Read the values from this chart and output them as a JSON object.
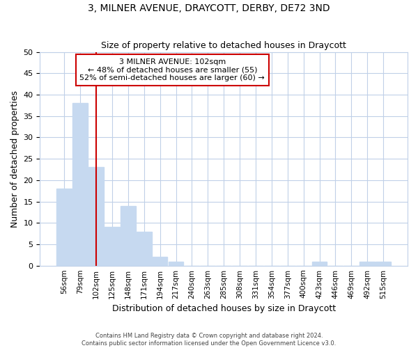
{
  "title": "3, MILNER AVENUE, DRAYCOTT, DERBY, DE72 3ND",
  "subtitle": "Size of property relative to detached houses in Draycott",
  "xlabel": "Distribution of detached houses by size in Draycott",
  "ylabel": "Number of detached properties",
  "bar_labels": [
    "56sqm",
    "79sqm",
    "102sqm",
    "125sqm",
    "148sqm",
    "171sqm",
    "194sqm",
    "217sqm",
    "240sqm",
    "263sqm",
    "285sqm",
    "308sqm",
    "331sqm",
    "354sqm",
    "377sqm",
    "400sqm",
    "423sqm",
    "446sqm",
    "469sqm",
    "492sqm",
    "515sqm"
  ],
  "bar_values": [
    18,
    38,
    23,
    9,
    14,
    8,
    2,
    1,
    0,
    0,
    0,
    0,
    0,
    0,
    0,
    0,
    1,
    0,
    0,
    1,
    1
  ],
  "bar_color": "#c6d9f0",
  "highlight_index": 2,
  "highlight_color": "#cc0000",
  "ylim": [
    0,
    50
  ],
  "yticks": [
    0,
    5,
    10,
    15,
    20,
    25,
    30,
    35,
    40,
    45,
    50
  ],
  "annotation_title": "3 MILNER AVENUE: 102sqm",
  "annotation_line1": "← 48% of detached houses are smaller (55)",
  "annotation_line2": "52% of semi-detached houses are larger (60) →",
  "footer1": "Contains HM Land Registry data © Crown copyright and database right 2024.",
  "footer2": "Contains public sector information licensed under the Open Government Licence v3.0.",
  "background_color": "#ffffff",
  "grid_color": "#c0d0e8"
}
